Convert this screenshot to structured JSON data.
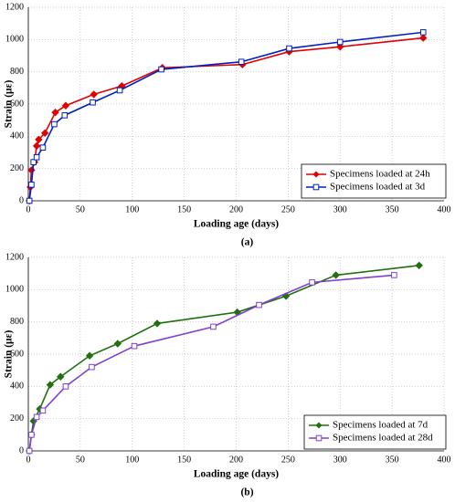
{
  "chart_data": [
    {
      "type": "line",
      "label": "(a)",
      "xlabel": "Loading age (days)",
      "ylabel": "Strain (με)",
      "xlim": [
        0,
        400
      ],
      "xticks": [
        0,
        50,
        100,
        150,
        200,
        250,
        300,
        350,
        400
      ],
      "ylim": [
        0,
        1200
      ],
      "yticks": [
        0,
        200,
        400,
        600,
        800,
        1000,
        1200
      ],
      "grid": true,
      "legend": "lower right",
      "series": [
        {
          "name": "Specimens loaded at 24h",
          "color": "#e00000",
          "marker": "diamond",
          "x": [
            1,
            2,
            3,
            6,
            8,
            10,
            16,
            26,
            36,
            63,
            90,
            129,
            206,
            251,
            300,
            380
          ],
          "values": [
            0,
            85,
            190,
            240,
            340,
            380,
            420,
            548,
            590,
            660,
            712,
            825,
            845,
            925,
            955,
            1010
          ]
        },
        {
          "name": "Specimens loaded at 3d",
          "color": "#0020c0",
          "marker": "square",
          "x": [
            1,
            3,
            5,
            8,
            14,
            25,
            35,
            62,
            88,
            128,
            205,
            251,
            300,
            380
          ],
          "values": [
            0,
            100,
            240,
            270,
            330,
            475,
            530,
            610,
            685,
            815,
            862,
            945,
            985,
            1045
          ]
        }
      ]
    },
    {
      "type": "line",
      "label": "(b)",
      "xlabel": "Loading age (days)",
      "ylabel": "Strain (με)",
      "xlim": [
        0,
        400
      ],
      "xticks": [
        0,
        50,
        100,
        150,
        200,
        250,
        300,
        350,
        400
      ],
      "ylim": [
        0,
        1200
      ],
      "yticks": [
        0,
        200,
        400,
        600,
        800,
        1000,
        1200
      ],
      "grid": true,
      "legend": "lower right",
      "series": [
        {
          "name": "Specimens loaded at 7d",
          "color": "#207010",
          "marker": "diamond",
          "x": [
            1,
            3,
            5,
            11,
            21,
            31,
            59,
            86,
            124,
            201,
            248,
            296,
            376
          ],
          "values": [
            0,
            100,
            185,
            260,
            410,
            460,
            590,
            665,
            790,
            860,
            960,
            1090,
            1150
          ]
        },
        {
          "name": "Specimens loaded at 28d",
          "color": "#8040d0",
          "marker": "square",
          "x": [
            1,
            3,
            8,
            14,
            36,
            61,
            102,
            178,
            222,
            273,
            352
          ],
          "values": [
            0,
            100,
            210,
            250,
            400,
            520,
            650,
            770,
            905,
            1045,
            1090
          ]
        }
      ]
    }
  ]
}
